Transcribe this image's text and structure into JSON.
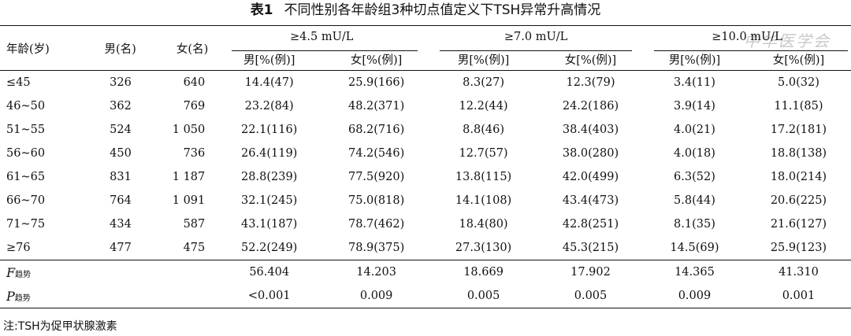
{
  "title": {
    "number": "表1",
    "text": "不同性别各年龄组3种切点值定义下TSH异常升高情况"
  },
  "watermark": "中华医学会",
  "headers": {
    "age": "年龄(岁)",
    "male_count": "男(名)",
    "female_count": "女(名)",
    "groups": [
      "≥4.5 mU/L",
      "≥7.0 mU/L",
      "≥10.0 mU/L"
    ],
    "male_sub": "男[%(例)]",
    "female_sub": "女[%(例)]"
  },
  "rows": [
    {
      "age": "≤45",
      "male": "326",
      "female": "640",
      "v": [
        "14.4(47)",
        "25.9(166)",
        "8.3(27)",
        "12.3(79)",
        "3.4(11)",
        "5.0(32)"
      ]
    },
    {
      "age": "46~50",
      "male": "362",
      "female": "769",
      "v": [
        "23.2(84)",
        "48.2(371)",
        "12.2(44)",
        "24.2(186)",
        "3.9(14)",
        "11.1(85)"
      ]
    },
    {
      "age": "51~55",
      "male": "524",
      "female": "1 050",
      "v": [
        "22.1(116)",
        "68.2(716)",
        "8.8(46)",
        "38.4(403)",
        "4.0(21)",
        "17.2(181)"
      ]
    },
    {
      "age": "56~60",
      "male": "450",
      "female": "736",
      "v": [
        "26.4(119)",
        "74.2(546)",
        "12.7(57)",
        "38.0(280)",
        "4.0(18)",
        "18.8(138)"
      ]
    },
    {
      "age": "61~65",
      "male": "831",
      "female": "1 187",
      "v": [
        "28.8(239)",
        "77.5(920)",
        "13.8(115)",
        "42.0(499)",
        "6.3(52)",
        "18.0(214)"
      ]
    },
    {
      "age": "66~70",
      "male": "764",
      "female": "1 091",
      "v": [
        "32.1(245)",
        "75.0(818)",
        "14.1(108)",
        "43.4(473)",
        "5.8(44)",
        "20.6(225)"
      ]
    },
    {
      "age": "71~75",
      "male": "434",
      "female": "587",
      "v": [
        "43.1(187)",
        "78.7(462)",
        "18.4(80)",
        "42.8(251)",
        "8.1(35)",
        "21.6(127)"
      ]
    },
    {
      "age": "≥76",
      "male": "477",
      "female": "475",
      "v": [
        "52.2(249)",
        "78.9(375)",
        "27.3(130)",
        "45.3(215)",
        "14.5(69)",
        "25.9(123)"
      ]
    }
  ],
  "stats": [
    {
      "label": "F",
      "sub": "趋势",
      "v": [
        "56.404",
        "14.203",
        "18.669",
        "17.902",
        "14.365",
        "41.310"
      ]
    },
    {
      "label": "P",
      "sub": "趋势",
      "v": [
        "<0.001",
        "0.009",
        "0.005",
        "0.005",
        "0.009",
        "0.001"
      ]
    }
  ],
  "note": "注:TSH为促甲状腺激素"
}
